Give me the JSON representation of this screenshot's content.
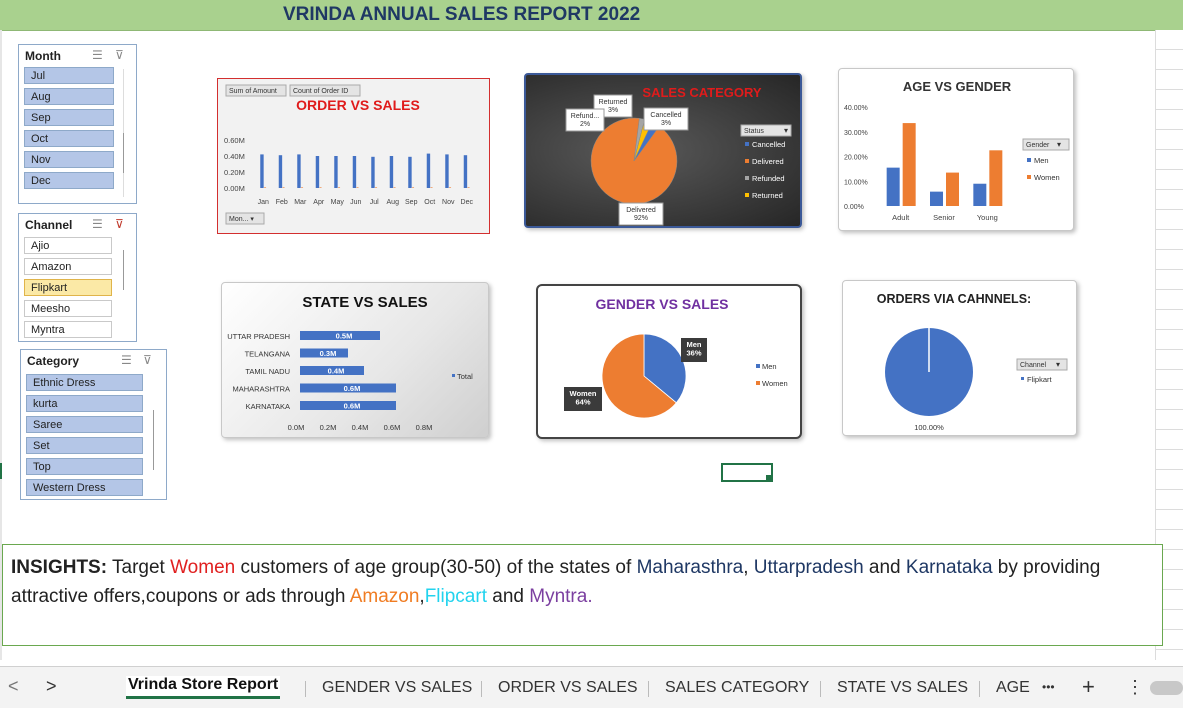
{
  "header": {
    "title": "VRINDA ANNUAL SALES REPORT 2022"
  },
  "slicers": {
    "month": {
      "title": "Month",
      "items": [
        {
          "label": "Jul",
          "state": "on"
        },
        {
          "label": "Aug",
          "state": "on"
        },
        {
          "label": "Sep",
          "state": "on"
        },
        {
          "label": "Oct",
          "state": "on"
        },
        {
          "label": "Nov",
          "state": "on"
        },
        {
          "label": "Dec",
          "state": "on"
        }
      ]
    },
    "channel": {
      "title": "Channel",
      "items": [
        {
          "label": "Ajio",
          "state": "off"
        },
        {
          "label": "Amazon",
          "state": "off"
        },
        {
          "label": "Flipkart",
          "state": "sel"
        },
        {
          "label": "Meesho",
          "state": "off"
        },
        {
          "label": "Myntra",
          "state": "off"
        }
      ]
    },
    "category": {
      "title": "Category",
      "items": [
        {
          "label": "Ethnic Dress",
          "state": "on"
        },
        {
          "label": "kurta",
          "state": "on"
        },
        {
          "label": "Saree",
          "state": "on"
        },
        {
          "label": "Set",
          "state": "on"
        },
        {
          "label": "Top",
          "state": "on"
        },
        {
          "label": "Western Dress",
          "state": "on"
        }
      ]
    }
  },
  "chart_data": [
    {
      "id": "order-vs-sales",
      "type": "bar",
      "title": "ORDER VS SALES",
      "field_buttons": [
        "Sum of Amount",
        "Count of Order ID"
      ],
      "filter_button": "Mon...",
      "categories": [
        "Jan",
        "Feb",
        "Mar",
        "Apr",
        "May",
        "Jun",
        "Jul",
        "Aug",
        "Sep",
        "Oct",
        "Nov",
        "Dec"
      ],
      "series": [
        {
          "name": "Sum of Amount",
          "values": [
            0.42,
            0.41,
            0.42,
            0.4,
            0.4,
            0.4,
            0.39,
            0.4,
            0.39,
            0.43,
            0.42,
            0.41
          ],
          "color": "#4472c4"
        },
        {
          "name": "Count of Order ID",
          "values": [
            0.002,
            0.002,
            0.002,
            0.002,
            0.002,
            0.002,
            0.002,
            0.002,
            0.002,
            0.002,
            0.002,
            0.002
          ],
          "color": "#ed7d31"
        }
      ],
      "y_ticks": [
        "0.00M",
        "0.20M",
        "0.40M",
        "0.60M"
      ],
      "ylim": [
        0,
        0.6
      ]
    },
    {
      "id": "sales-category",
      "type": "pie",
      "title": "SALES CATEGORY",
      "legend_title": "Status",
      "slices": [
        {
          "label": "Cancelled",
          "value": 3,
          "value_label": "Cancelled\n3%",
          "color": "#4472c4"
        },
        {
          "label": "Delivered",
          "value": 92,
          "value_label": "Delivered\n92%",
          "color": "#ed7d31"
        },
        {
          "label": "Refunded",
          "value": 2,
          "value_label": "Refund...\n2%",
          "color": "#a5a5a5"
        },
        {
          "label": "Returned",
          "value": 3,
          "value_label": "Returned\n3%",
          "color": "#ffc000"
        }
      ]
    },
    {
      "id": "age-vs-gender",
      "type": "bar",
      "title": "AGE VS GENDER",
      "legend_title": "Gender",
      "categories": [
        "Adult",
        "Senior",
        "Young"
      ],
      "series": [
        {
          "name": "Men",
          "values": [
            15.5,
            5.8,
            9.0
          ],
          "color": "#4472c4"
        },
        {
          "name": "Women",
          "values": [
            33.5,
            13.5,
            22.5
          ],
          "color": "#ed7d31"
        }
      ],
      "y_ticks": [
        "0.00%",
        "10.00%",
        "20.00%",
        "30.00%",
        "40.00%"
      ],
      "ylim": [
        0,
        40
      ]
    },
    {
      "id": "state-vs-sales",
      "type": "bar",
      "orientation": "horizontal",
      "title": "STATE VS SALES",
      "categories": [
        "UTTAR PRADESH",
        "TELANGANA",
        "TAMIL NADU",
        "MAHARASHTRA",
        "KARNATAKA"
      ],
      "series": [
        {
          "name": "Total",
          "values": [
            0.5,
            0.3,
            0.4,
            0.6,
            0.6
          ],
          "value_labels": [
            "0.5M",
            "0.3M",
            "0.4M",
            "0.6M",
            "0.6M"
          ],
          "color": "#4472c4"
        }
      ],
      "x_ticks": [
        "0.0M",
        "0.2M",
        "0.4M",
        "0.6M",
        "0.8M"
      ],
      "xlim": [
        0,
        0.8
      ]
    },
    {
      "id": "gender-vs-sales",
      "type": "pie",
      "title": "GENDER VS SALES",
      "slices": [
        {
          "label": "Men",
          "value": 36,
          "value_label": "Men\n36%",
          "color": "#4472c4"
        },
        {
          "label": "Women",
          "value": 64,
          "value_label": "Women\n64%",
          "color": "#ed7d31"
        }
      ]
    },
    {
      "id": "orders-via-channels",
      "type": "pie",
      "title": "ORDERS VIA CAHNNELS:",
      "legend_title": "Channel",
      "slices": [
        {
          "label": "Flipkart",
          "value": 100,
          "value_label": "100.00%",
          "color": "#4472c4"
        }
      ]
    }
  ],
  "insights": {
    "label": "INSIGHTS:",
    "t1": " Target ",
    "women": "Women",
    "t2": " customers of age group(30-50) of the states of ",
    "mh": "Maharasthra",
    "c1": ", ",
    "up": "Uttarpradesh",
    "t3": " and ",
    "ka": "Karnataka",
    "t4": " by providing attractive offers,coupons or ads through ",
    "amazon": "Amazon",
    "c2": ",",
    "flipkart": "Flipcart",
    "t5": " and ",
    "myntra": "Myntra."
  },
  "tabs": {
    "prev_glyph": "<",
    "next_glyph": ">",
    "items": [
      "Vrinda Store  Report",
      "GENDER VS SALES",
      "ORDER VS SALES",
      "SALES CATEGORY",
      "STATE VS SALES",
      "AGE"
    ],
    "more": "•••",
    "add": "+",
    "menu": "⋮"
  }
}
